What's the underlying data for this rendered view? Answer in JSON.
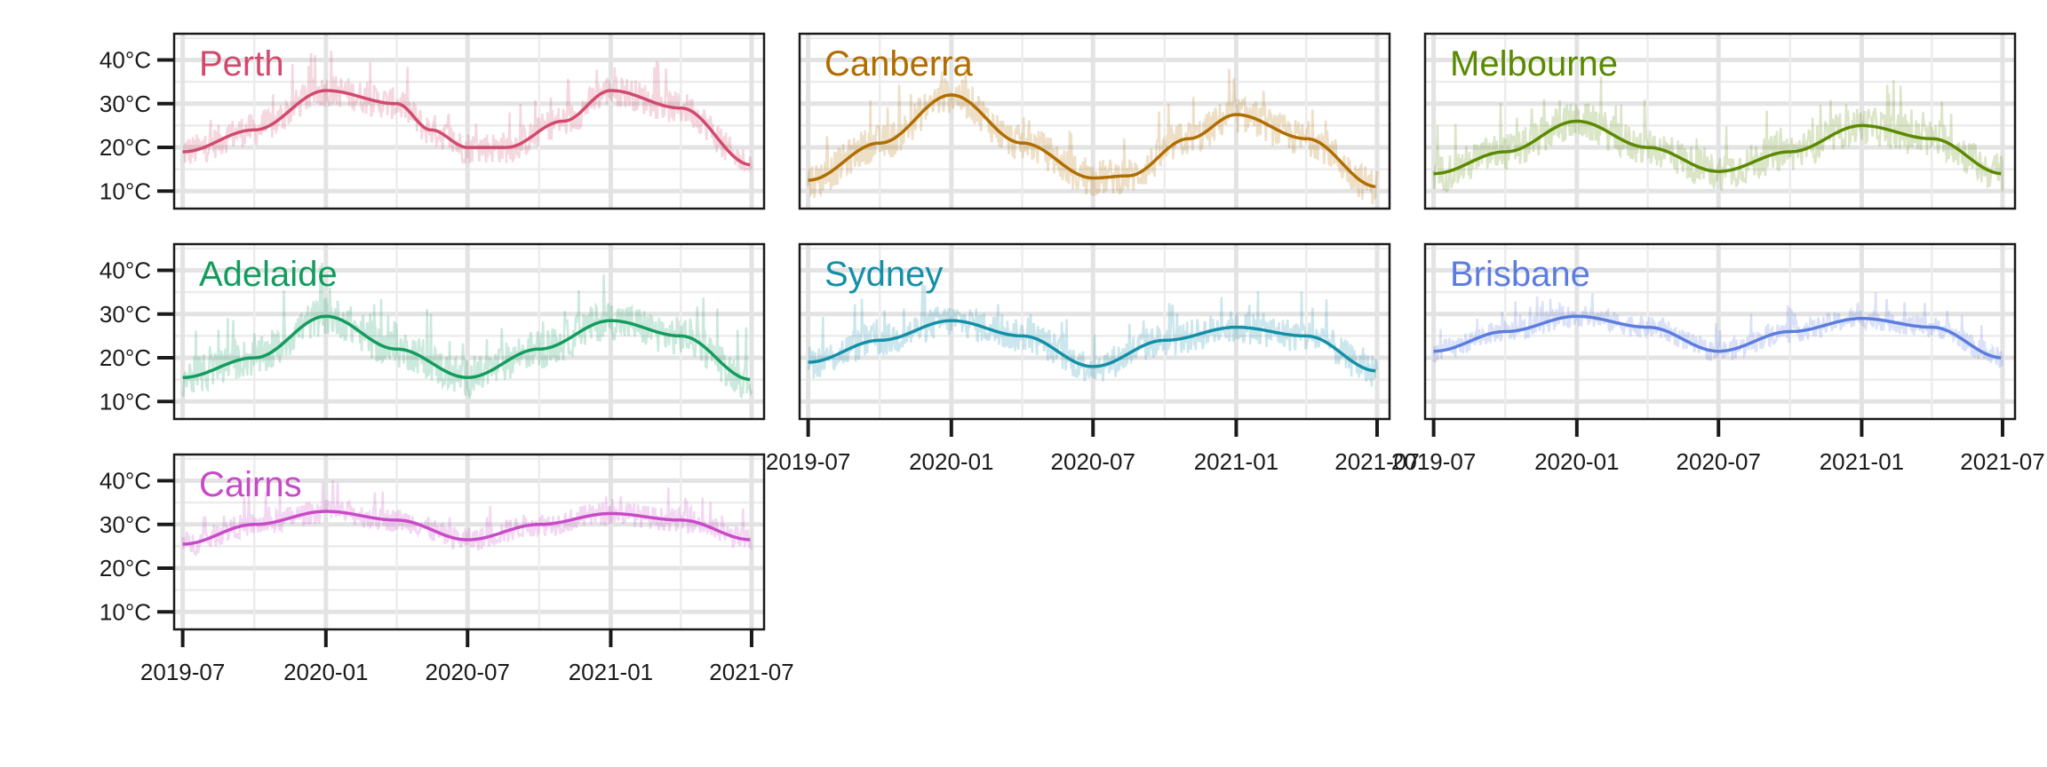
{
  "chart_data": {
    "type": "line",
    "grid": true,
    "x_ticks": [
      "2019-07",
      "2020-01",
      "2020-07",
      "2021-01",
      "2021-07"
    ],
    "y_ticks": [
      "10°C",
      "20°C",
      "30°C",
      "40°C"
    ],
    "ylim": [
      6,
      46
    ],
    "xlim": [
      "2019-06-20",
      "2021-07-17"
    ],
    "panels": [
      {
        "name": "Perth",
        "color": "#d14a6e",
        "smooth": [
          [
            "2019-07-01",
            19
          ],
          [
            "2019-10-01",
            24
          ],
          [
            "2020-01-01",
            33
          ],
          [
            "2020-04-01",
            30
          ],
          [
            "2020-05-15",
            24
          ],
          [
            "2020-07-01",
            20
          ],
          [
            "2020-08-20",
            20
          ],
          [
            "2020-11-01",
            26
          ],
          [
            "2021-01-01",
            33
          ],
          [
            "2021-04-01",
            29
          ],
          [
            "2021-07-01",
            16
          ]
        ],
        "temp_range": [
          15,
          44
        ]
      },
      {
        "name": "Canberra",
        "color": "#b06d00",
        "smooth": [
          [
            "2019-07-01",
            12.5
          ],
          [
            "2019-10-01",
            21
          ],
          [
            "2020-01-01",
            32
          ],
          [
            "2020-04-01",
            21
          ],
          [
            "2020-07-01",
            13
          ],
          [
            "2020-08-15",
            13.5
          ],
          [
            "2020-11-01",
            22
          ],
          [
            "2021-01-01",
            27.5
          ],
          [
            "2021-04-01",
            22
          ],
          [
            "2021-07-01",
            11
          ]
        ],
        "temp_range": [
          5,
          38
        ]
      },
      {
        "name": "Melbourne",
        "color": "#5a8a00",
        "smooth": [
          [
            "2019-07-01",
            14
          ],
          [
            "2019-10-01",
            19
          ],
          [
            "2020-01-01",
            26
          ],
          [
            "2020-04-01",
            20
          ],
          [
            "2020-07-01",
            14.5
          ],
          [
            "2020-10-01",
            19
          ],
          [
            "2021-01-01",
            25
          ],
          [
            "2021-04-01",
            22
          ],
          [
            "2021-07-01",
            14
          ]
        ],
        "temp_range": [
          9,
          43
        ]
      },
      {
        "name": "Adelaide",
        "color": "#139c5e",
        "smooth": [
          [
            "2019-07-01",
            15.5
          ],
          [
            "2019-10-01",
            20
          ],
          [
            "2020-01-01",
            29.5
          ],
          [
            "2020-04-01",
            22
          ],
          [
            "2020-07-01",
            15.5
          ],
          [
            "2020-10-01",
            22
          ],
          [
            "2021-01-01",
            28.5
          ],
          [
            "2021-04-01",
            25
          ],
          [
            "2021-07-01",
            15
          ]
        ],
        "temp_range": [
          11,
          46
        ]
      },
      {
        "name": "Sydney",
        "color": "#138fa8",
        "smooth": [
          [
            "2019-07-01",
            19
          ],
          [
            "2019-10-01",
            24
          ],
          [
            "2020-01-01",
            28.5
          ],
          [
            "2020-04-01",
            25
          ],
          [
            "2020-07-01",
            18
          ],
          [
            "2020-10-01",
            24
          ],
          [
            "2021-01-01",
            27
          ],
          [
            "2021-04-01",
            25
          ],
          [
            "2021-07-01",
            17
          ]
        ],
        "temp_range": [
          11,
          41
        ]
      },
      {
        "name": "Brisbane",
        "color": "#5c7de0",
        "smooth": [
          [
            "2019-07-01",
            21.5
          ],
          [
            "2019-10-01",
            26
          ],
          [
            "2020-01-01",
            29.5
          ],
          [
            "2020-04-01",
            27
          ],
          [
            "2020-07-01",
            21.5
          ],
          [
            "2020-10-01",
            26
          ],
          [
            "2021-01-01",
            29
          ],
          [
            "2021-04-01",
            27
          ],
          [
            "2021-07-01",
            20
          ]
        ],
        "temp_range": [
          17,
          36
        ]
      },
      {
        "name": "Cairns",
        "color": "#c84ac8",
        "smooth": [
          [
            "2019-07-01",
            25.5
          ],
          [
            "2019-10-01",
            30
          ],
          [
            "2020-01-01",
            33
          ],
          [
            "2020-04-01",
            31
          ],
          [
            "2020-07-01",
            26.5
          ],
          [
            "2020-10-01",
            30
          ],
          [
            "2021-01-01",
            32.5
          ],
          [
            "2021-04-01",
            31
          ],
          [
            "2021-07-01",
            26.5
          ]
        ],
        "temp_range": [
          20,
          41
        ]
      }
    ]
  }
}
